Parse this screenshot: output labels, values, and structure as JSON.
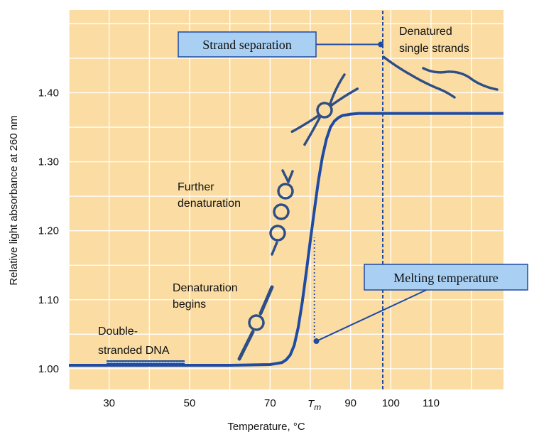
{
  "colors": {
    "plot_bg": "#FBDDA4",
    "grid": "#FFFFFF",
    "curve": "#1F4BA3",
    "callout_fill": "#A9CFF2",
    "callout_border": "#1F4BA3",
    "dna": "#2E4E86"
  },
  "chart_data": {
    "type": "line",
    "title": "",
    "xlabel": "Temperature, °C",
    "ylabel": "Relative light absorbance at 260 nm",
    "xlim": [
      20,
      128
    ],
    "ylim": [
      0.97,
      1.52
    ],
    "x_ticks": [
      {
        "value": 30,
        "label": "30"
      },
      {
        "value": 50,
        "label": "50"
      },
      {
        "value": 70,
        "label": "70"
      },
      {
        "value": 90,
        "label": "90"
      },
      {
        "value": 100,
        "label": "100"
      },
      {
        "value": 110,
        "label": "110"
      }
    ],
    "tm_tick": {
      "value": 81,
      "label": "T",
      "subscript": "m"
    },
    "y_ticks": [
      {
        "value": 1.0,
        "label": "1.00"
      },
      {
        "value": 1.1,
        "label": "1.10"
      },
      {
        "value": 1.2,
        "label": "1.20"
      },
      {
        "value": 1.3,
        "label": "1.30"
      },
      {
        "value": 1.4,
        "label": "1.40"
      }
    ],
    "grid": true,
    "series": [
      {
        "x": [
          20,
          60,
          70,
          73,
          74,
          75,
          76,
          77,
          78,
          79,
          80,
          81,
          82,
          83,
          84,
          85,
          86,
          87,
          88,
          89,
          90,
          92,
          95,
          100,
          110,
          128
        ],
        "y": [
          1.005,
          1.005,
          1.006,
          1.009,
          1.013,
          1.02,
          1.034,
          1.06,
          1.097,
          1.14,
          1.186,
          1.23,
          1.272,
          1.307,
          1.333,
          1.35,
          1.359,
          1.364,
          1.367,
          1.368,
          1.369,
          1.37,
          1.37,
          1.37,
          1.37,
          1.37
        ]
      }
    ],
    "reference_lines": [
      {
        "x": 81,
        "y_from": 1.04,
        "y_to": 1.19,
        "style": "dotted"
      },
      {
        "x": 98,
        "y_from": 0.97,
        "y_to": 1.52,
        "style": "dashed"
      }
    ],
    "annotations": [
      {
        "lines": [
          "Double-",
          "stranded DNA"
        ]
      },
      {
        "lines": [
          "Denaturation",
          "begins"
        ]
      },
      {
        "lines": [
          "Further",
          "denaturation"
        ]
      },
      {
        "lines": [
          "Denatured",
          "single strands"
        ]
      }
    ],
    "callouts": [
      {
        "label": "Strand separation",
        "point": {
          "x": 97.5,
          "y": 1.47
        }
      },
      {
        "label": "Melting temperature",
        "point": {
          "x": 81.5,
          "y": 1.04
        }
      }
    ]
  }
}
